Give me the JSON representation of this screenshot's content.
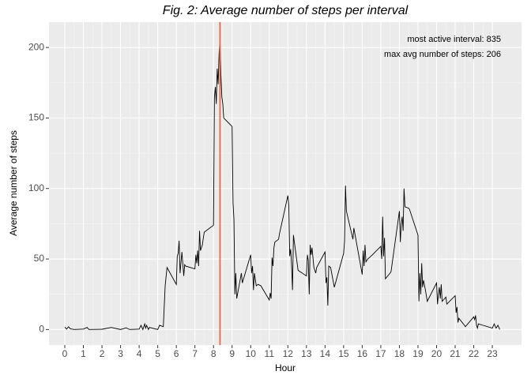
{
  "chart_data": {
    "type": "line",
    "title": "Fig. 2: Average number of steps per interval",
    "x_label": "Hour",
    "y_label": "Average number of steps",
    "annotations": [
      "most active interval:  835",
      "max avg number of steps:  206"
    ],
    "vline": {
      "x": 8.35,
      "color": "#e4694a"
    },
    "xlim": [
      -0.85,
      24.57
    ],
    "ylim": [
      -11,
      218
    ],
    "xticks": [
      0,
      1,
      2,
      3,
      4,
      5,
      6,
      7,
      8,
      9,
      10,
      11,
      12,
      13,
      14,
      15,
      16,
      17,
      18,
      19,
      20,
      21,
      22,
      23
    ],
    "yticks": [
      0,
      50,
      100,
      150,
      200
    ],
    "grid": true,
    "series": [
      {
        "color": "#000000",
        "x": [
          0,
          0.1,
          0.2,
          0.3,
          0.5,
          1,
          1.2,
          1.3,
          2,
          2.5,
          3,
          3.3,
          3.5,
          4,
          4.1,
          4.2,
          4.3,
          4.35,
          4.4,
          4.5,
          4.55,
          5,
          5.1,
          5.3,
          5.4,
          5.5,
          6,
          6.05,
          6.1,
          6.15,
          6.2,
          6.3,
          6.4,
          6.45,
          6.5,
          7,
          7.05,
          7.1,
          7.15,
          7.2,
          7.25,
          7.3,
          7.4,
          7.5,
          8,
          8.05,
          8.1,
          8.15,
          8.2,
          8.25,
          8.3,
          8.35,
          8.4,
          8.45,
          8.5,
          8.55,
          9,
          9.05,
          9.1,
          9.15,
          9.2,
          9.25,
          9.5,
          9.55,
          10,
          10.05,
          10.1,
          10.15,
          10.2,
          10.3,
          10.4,
          10.55,
          11,
          11.05,
          11.1,
          11.15,
          11.2,
          11.25,
          11.3,
          11.5,
          11.55,
          12,
          12.05,
          12.1,
          12.15,
          12.2,
          12.25,
          12.3,
          12.4,
          12.55,
          13,
          13.05,
          13.1,
          13.15,
          13.2,
          13.25,
          13.3,
          13.4,
          13.5,
          13.55,
          14,
          14.05,
          14.1,
          14.15,
          14.2,
          14.3,
          14.5,
          15,
          15.05,
          15.1,
          15.15,
          15.5,
          15.55,
          16,
          16.05,
          16.1,
          16.15,
          16.2,
          16.3,
          16.55,
          17,
          17.05,
          17.1,
          17.15,
          17.2,
          17.25,
          17.5,
          17.55,
          18,
          18.05,
          18.1,
          18.15,
          18.2,
          18.25,
          18.3,
          18.5,
          18.55,
          19,
          19.05,
          19.1,
          19.15,
          19.2,
          19.25,
          19.3,
          19.4,
          19.5,
          20,
          20.05,
          20.1,
          20.15,
          20.2,
          20.25,
          20.3,
          20.5,
          20.55,
          21,
          21.05,
          21.1,
          21.15,
          21.2,
          21.5,
          21.55,
          22,
          22.05,
          22.1,
          22.15,
          22.2,
          22.25,
          22.5,
          23,
          23.1,
          23.2,
          23.3,
          23.4
        ],
        "values": [
          1.7,
          0.3,
          2,
          0.5,
          0,
          0.3,
          1.5,
          0,
          0.2,
          1.5,
          0,
          1.2,
          0,
          0.3,
          3,
          0,
          4,
          1,
          3,
          0,
          1.5,
          0,
          3,
          2,
          31,
          44,
          32,
          52,
          54,
          63,
          40,
          55,
          38,
          46,
          45,
          43,
          53,
          47,
          56,
          45,
          70,
          56,
          60,
          69,
          74,
          165,
          172,
          160,
          185,
          174,
          195,
          206,
          180,
          165,
          160,
          150,
          144,
          90,
          78,
          25,
          40,
          22,
          40,
          33,
          53,
          40,
          45,
          28,
          40,
          31,
          32,
          31,
          21,
          26,
          22,
          51,
          45,
          58,
          62,
          64,
          68,
          95,
          88,
          52,
          57,
          46,
          28,
          67,
          57,
          42,
          38,
          53,
          49,
          25,
          60,
          53,
          58,
          44,
          40,
          44,
          55,
          33,
          37,
          17,
          45,
          44,
          30,
          54,
          63,
          102,
          84,
          64,
          72,
          39,
          56,
          45,
          60,
          48,
          50,
          53,
          59,
          50,
          80,
          52,
          65,
          36,
          40,
          41,
          84,
          62,
          75,
          80,
          70,
          100,
          87,
          86,
          85,
          67,
          20,
          40,
          25,
          47,
          30,
          35,
          28,
          20,
          33,
          18,
          25,
          30,
          22,
          32,
          20,
          23,
          18,
          24,
          12,
          16,
          5,
          8,
          3,
          2,
          9,
          7,
          10,
          3,
          1,
          4,
          3,
          1,
          4,
          1,
          3,
          0
        ]
      }
    ]
  }
}
